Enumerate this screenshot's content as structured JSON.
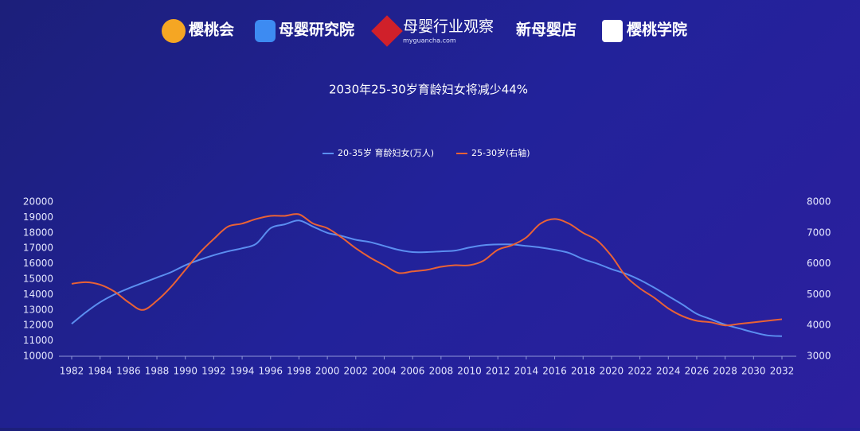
{
  "header": {
    "logos": [
      "樱桃会",
      "母婴研究院",
      "母婴行业观察",
      "myguancha.com",
      "新母婴店",
      "樱桃学院"
    ]
  },
  "chart_data": {
    "type": "line",
    "title": "2030年25-30岁育龄妇女将减少44%",
    "x": [
      1982,
      1983,
      1984,
      1985,
      1986,
      1987,
      1988,
      1989,
      1990,
      1991,
      1992,
      1993,
      1994,
      1995,
      1996,
      1997,
      1998,
      1999,
      2000,
      2001,
      2002,
      2003,
      2004,
      2005,
      2006,
      2007,
      2008,
      2009,
      2010,
      2011,
      2012,
      2013,
      2014,
      2015,
      2016,
      2017,
      2018,
      2019,
      2020,
      2021,
      2022,
      2023,
      2024,
      2025,
      2026,
      2027,
      2028,
      2029,
      2030,
      2031,
      2032
    ],
    "xlim": [
      1982,
      2032
    ],
    "xticks": [
      1982,
      1984,
      1986,
      1988,
      1990,
      1992,
      1994,
      1996,
      1998,
      2000,
      2002,
      2004,
      2006,
      2008,
      2010,
      2012,
      2014,
      2016,
      2018,
      2020,
      2022,
      2024,
      2026,
      2028,
      2030,
      2032
    ],
    "ylim": [
      10000,
      20000
    ],
    "yticks": [
      10000,
      11000,
      12000,
      13000,
      14000,
      15000,
      16000,
      17000,
      18000,
      19000,
      20000
    ],
    "y2lim": [
      3000,
      8000
    ],
    "y2ticks": [
      3000,
      4000,
      5000,
      6000,
      7000,
      8000
    ],
    "legend": "top",
    "series": [
      {
        "name": "20-35岁 育龄妇女(万人)",
        "color": "#5b8ef0",
        "values": [
          12100,
          12850,
          13500,
          14000,
          14400,
          14750,
          15100,
          15450,
          15900,
          16250,
          16550,
          16800,
          17000,
          17300,
          18300,
          18550,
          18800,
          18400,
          18000,
          17800,
          17550,
          17400,
          17150,
          16900,
          16750,
          16750,
          16800,
          16850,
          17050,
          17200,
          17250,
          17250,
          17150,
          17050,
          16900,
          16700,
          16300,
          16000,
          15650,
          15350,
          14950,
          14450,
          13900,
          13350,
          12750,
          12400,
          12050,
          11800,
          11550,
          11350,
          11300
        ]
      },
      {
        "name": "25-30岁(右轴)",
        "color": "#ea6235",
        "axis": "y2",
        "values": [
          5350,
          5400,
          5320,
          5100,
          4750,
          4500,
          4800,
          5250,
          5800,
          6350,
          6800,
          7200,
          7300,
          7450,
          7550,
          7550,
          7600,
          7300,
          7150,
          6850,
          6500,
          6200,
          5950,
          5700,
          5750,
          5800,
          5900,
          5950,
          5950,
          6100,
          6450,
          6600,
          6850,
          7300,
          7450,
          7300,
          7000,
          6750,
          6250,
          5600,
          5200,
          4900,
          4550,
          4300,
          4150,
          4100,
          4000,
          4050,
          4100,
          4150,
          4200
        ]
      }
    ]
  }
}
